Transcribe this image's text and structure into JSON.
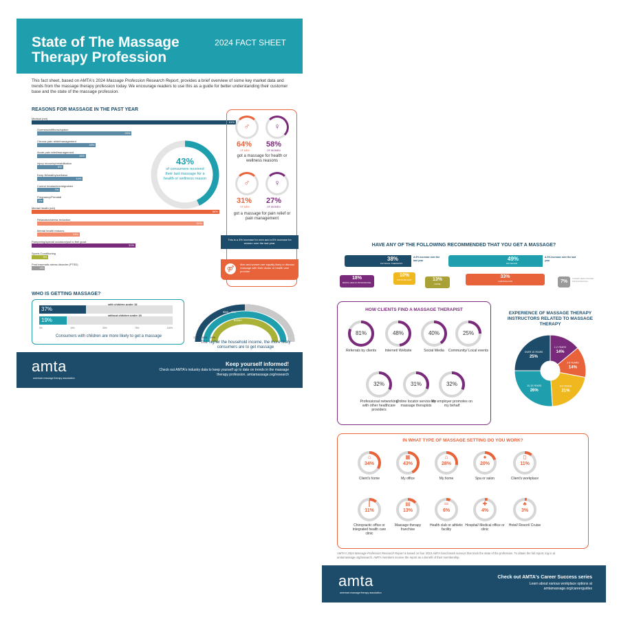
{
  "sheet1": {
    "title": "State of The Massage Therapy Profession",
    "subtitle": "2024 FACT SHEET",
    "intro_a": "This fact sheet, based on AMTA's 2024 ",
    "intro_em": "Massage Profession Research Report",
    "intro_b": ", provides a brief overview of some key market data and trends from the massage therapy profession today. We encourage readers to use this as a guide for better understanding their customer base and the state of the massage profession.",
    "reasons_heading": "REASONS FOR MASSAGE IN THE PAST YEAR",
    "reasons": [
      {
        "label": "Medical (net)",
        "value": "61%",
        "pct": 61,
        "color": "#1c4c6a",
        "indent": false
      },
      {
        "label": "Soreness/stiffness/spasm",
        "value": "29%",
        "pct": 29,
        "color": "#5b8aa6",
        "indent": true
      },
      {
        "label": "Chronic pain relief/management",
        "value": "18%",
        "pct": 18,
        "color": "#5b8aa6",
        "indent": true
      },
      {
        "label": "Acute pain relief/management",
        "value": "15%",
        "pct": 15,
        "color": "#5b8aa6",
        "indent": true
      },
      {
        "label": "Injury recovery/rehabilitation",
        "value": "8%",
        "pct": 8,
        "color": "#5b8aa6",
        "indent": true
      },
      {
        "label": "Keep fit/healthy/wellness",
        "value": "14%",
        "pct": 14,
        "color": "#5b8aa6",
        "indent": true
      },
      {
        "label": "Control headaches/migraines",
        "value": "7%",
        "pct": 7,
        "color": "#5b8aa6",
        "indent": true
      },
      {
        "label": "Pregnancy/Prenatal",
        "value": "2%",
        "pct": 2,
        "color": "#5b8aa6",
        "indent": true
      },
      {
        "label": "Mental Health (net)",
        "value": "56%",
        "pct": 56,
        "color": "#e8623a",
        "indent": false
      },
      {
        "label": "Relaxation/stress reduction",
        "value": "51%",
        "pct": 51,
        "color": "#f08a6a",
        "indent": true
      },
      {
        "label": "Mental health reasons",
        "value": "13%",
        "pct": 13,
        "color": "#f08a6a",
        "indent": true
      },
      {
        "label": "Pampering/special occasion/just to feel good",
        "value": "31%",
        "pct": 31,
        "color": "#7a2a7a",
        "indent": false
      },
      {
        "label": "Sports Conditioning",
        "value": "5%",
        "pct": 5,
        "color": "#a9b236",
        "indent": false
      },
      {
        "label": "Post-traumatic stress disorder (PTSD)",
        "value": "4%",
        "pct": 4,
        "color": "#9a9a9a",
        "indent": false
      }
    ],
    "donut_value": "43%",
    "donut_text": "of consumers received their last massage for a health or wellness reason",
    "health_men": "64%",
    "health_women": "58%",
    "of_men": "OF MEN",
    "of_women": "OF WOMEN",
    "health_text": "got a massage for health or wellness reasons",
    "pain_men": "31%",
    "pain_women": "27%",
    "pain_text": "got a massage for pain relief or pain management",
    "increase_note": "This is a 3% increase for men and a 6% increase for women over the last year.",
    "equal_note": "Men and women are equally likely to discuss massage with their doctor or health care provider",
    "who_heading": "WHO IS GETTING MASSAGE?",
    "with_children_value": "37%",
    "with_children_label": "with children under 18",
    "without_children_value": "19%",
    "without_children_label": "without children under 18",
    "axis_ticks": [
      "0%",
      "10%",
      "30%",
      "75%",
      "100%"
    ],
    "children_caption": "Consumers with children are more likely to get a massage",
    "income_labels": [
      "<$50K",
      "$50K - 100K",
      "$100K+"
    ],
    "income_values": [
      "17%",
      "18%",
      "19%"
    ],
    "income_caption": "The higher the household income, the more likely consumers are to get massage",
    "logo": "amta",
    "logo_sub": "american massage therapy association",
    "footer_heading": "Keep yourself informed!",
    "footer_text": "Check out AMTA's industry data to keep yourself up to date on trends in the massage therapy profession. amtamassage.org/research"
  },
  "sheet2": {
    "rec_heading": "HAVE ANY OF THE FOLLOWING RECOMMENDED THAT YOU GET A MASSAGE?",
    "rec": [
      {
        "value": "38%",
        "label": "PHYSICAL THERAPIST",
        "note": "A 6% increase over the last year",
        "color": "#1c4c6a"
      },
      {
        "value": "49%",
        "label": "PHYSICIAN",
        "note": "A 3% increase over the last year",
        "color": "#1f9fae"
      },
      {
        "value": "18%",
        "label": "MENTAL HEALTH PROFESSIONAL",
        "color": "#7a2a7a"
      },
      {
        "value": "10%",
        "label": "PHYSICIAN ASST",
        "color": "#f0b81f"
      },
      {
        "value": "13%",
        "label": "NURSE",
        "color": "#a9a036"
      },
      {
        "value": "33%",
        "label": "CHIROPRACTOR",
        "color": "#e8623a"
      },
      {
        "value": "7%",
        "label": "OTHER HEALTHCARE PROFESSIONAL",
        "color": "#9a9a9a"
      }
    ],
    "find_heading": "HOW CLIENTS FIND A MASSAGE THERAPIST",
    "find": [
      {
        "value": "81%",
        "pct": 81,
        "label": "Referrals by clients"
      },
      {
        "value": "48%",
        "pct": 48,
        "label": "Internet/ Website"
      },
      {
        "value": "40%",
        "pct": 40,
        "label": "Social Media"
      },
      {
        "value": "25%",
        "pct": 25,
        "label": "Community/ Local events"
      },
      {
        "value": "32%",
        "pct": 32,
        "label": "Professional networking with other healthcare providers"
      },
      {
        "value": "31%",
        "pct": 31,
        "label": "Online locator service for massage therapists"
      },
      {
        "value": "32%",
        "pct": 32,
        "label": "My employer promotes on my behalf"
      }
    ],
    "exp_heading": "EXPERIENCE OF MASSAGE THERAPY INSTRUCTORS RELATED TO MASSAGE THERAPY",
    "exp": [
      {
        "label": "1-2 YEARS",
        "value": "14%",
        "pct": 14,
        "color": "#7a2a7a"
      },
      {
        "label": "3-5 YEARS",
        "value": "14%",
        "pct": 14,
        "color": "#e8623a"
      },
      {
        "label": "6-9 YEARS",
        "value": "21%",
        "pct": 21,
        "color": "#f0b81f"
      },
      {
        "label": "10-15 YEARS",
        "value": "26%",
        "pct": 26,
        "color": "#1f9fae"
      },
      {
        "label": "OVER 15 YEARS",
        "value": "25%",
        "pct": 25,
        "color": "#1c4c6a"
      }
    ],
    "setting_heading": "IN WHAT TYPE OF MASSAGE SETTING DO YOU WORK?",
    "settings": [
      {
        "value": "34%",
        "pct": 34,
        "label": "Client's home",
        "icon": "⌂",
        "icon_name": "house-icon"
      },
      {
        "value": "43%",
        "pct": 43,
        "label": "My office",
        "icon": "▦",
        "icon_name": "office-building-icon"
      },
      {
        "value": "28%",
        "pct": 28,
        "label": "My home",
        "icon": "⌂",
        "icon_name": "home-icon"
      },
      {
        "value": "20%",
        "pct": 20,
        "label": "Spa or salon",
        "icon": "●",
        "icon_name": "spa-drop-icon"
      },
      {
        "value": "11%",
        "pct": 11,
        "label": "Client's workplace",
        "icon": "▯",
        "icon_name": "workplace-building-icon"
      },
      {
        "value": "11%",
        "pct": 11,
        "label": "Chiropractic office or integrated health care clinic",
        "icon": "┃",
        "icon_name": "spine-icon"
      },
      {
        "value": "13%",
        "pct": 13,
        "label": "Massage therapy franchise",
        "icon": "▤",
        "icon_name": "storefront-icon"
      },
      {
        "value": "6%",
        "pct": 6,
        "label": "Health club or athletic facility",
        "icon": "═",
        "icon_name": "dumbbell-icon"
      },
      {
        "value": "4%",
        "pct": 4,
        "label": "Hospital/ Medical office or clinic",
        "icon": "✚",
        "icon_name": "medical-cross-icon"
      },
      {
        "value": "3%",
        "pct": 3,
        "label": "Hotel/ Resort/ Cruise",
        "icon": "♣",
        "icon_name": "palm-tree-icon"
      }
    ],
    "source_em": "AMTA's 2024 Massage Profession Research Report",
    "source_text": " is based on four 2023 AMTA benchmark surveys that track the state of the profession. To obtain the full report, log in at amtamassage.org/research. AMTA members receive the report as a benefit of their membership.",
    "logo": "amta",
    "logo_sub": "american massage therapy association",
    "footer_heading": "Check out AMTA's Career Success series",
    "footer_text": "Learn about various workplace options at amtamassage.org/careerguides"
  },
  "colors": {
    "teal": "#1f9fae",
    "navy": "#1c4c6a",
    "orange": "#e8623a",
    "purple": "#7a2a7a"
  }
}
